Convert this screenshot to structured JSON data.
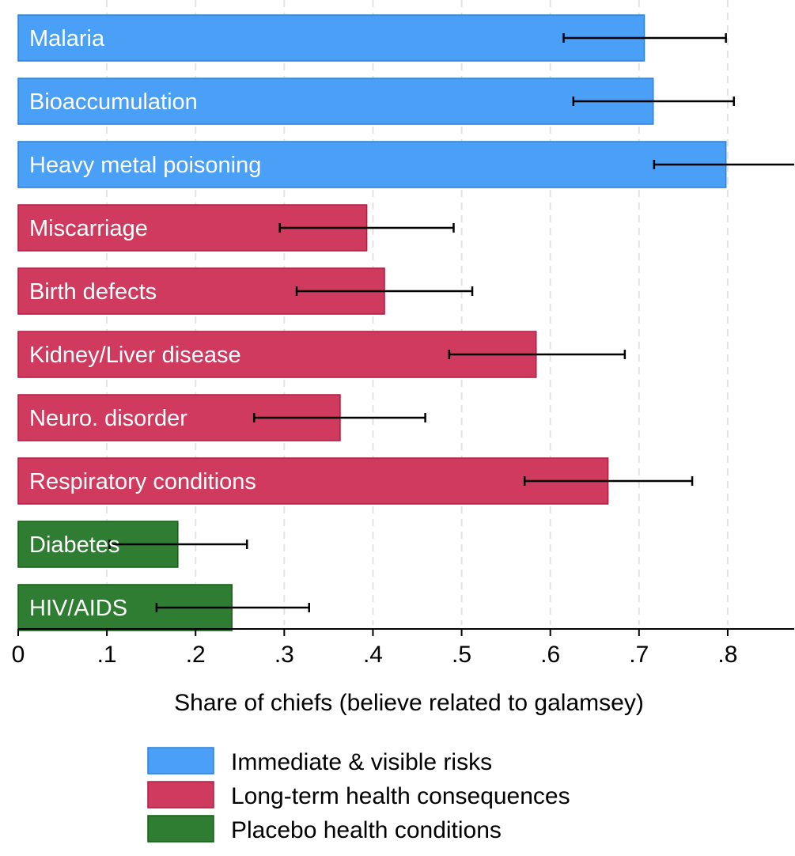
{
  "chart_data": {
    "type": "bar",
    "orientation": "horizontal",
    "xlabel": "Share of chiefs (believe related to galamsey)",
    "ylabel": "",
    "xlim": [
      0,
      0.875
    ],
    "x_ticks": [
      0,
      0.1,
      0.2,
      0.3,
      0.4,
      0.5,
      0.6,
      0.7,
      0.8
    ],
    "x_tick_labels": [
      "0",
      ".1",
      ".2",
      ".3",
      ".4",
      ".5",
      ".6",
      ".7",
      ".8"
    ],
    "grid": "vertical dashed",
    "legend_position": "bottom",
    "groups": [
      {
        "name": "Immediate & visible risks",
        "color": "#4a9ff7"
      },
      {
        "name": "Long-term health consequences",
        "color": "#cf3a5e"
      },
      {
        "name": "Placebo health conditions",
        "color": "#2f7d32"
      }
    ],
    "bars": [
      {
        "label": "Malaria",
        "value": 0.706,
        "ci": [
          0.615,
          0.798
        ],
        "group": 0
      },
      {
        "label": "Bioaccumulation",
        "value": 0.716,
        "ci": [
          0.626,
          0.807
        ],
        "group": 0
      },
      {
        "label": "Heavy metal poisoning",
        "value": 0.798,
        "ci": [
          0.717,
          0.88
        ],
        "group": 0
      },
      {
        "label": "Miscarriage",
        "value": 0.393,
        "ci": [
          0.295,
          0.491
        ],
        "group": 1
      },
      {
        "label": "Birth defects",
        "value": 0.413,
        "ci": [
          0.314,
          0.512
        ],
        "group": 1
      },
      {
        "label": "Kidney/Liver disease",
        "value": 0.584,
        "ci": [
          0.486,
          0.684
        ],
        "group": 1
      },
      {
        "label": "Neuro. disorder",
        "value": 0.363,
        "ci": [
          0.266,
          0.459
        ],
        "group": 1
      },
      {
        "label": "Respiratory conditions",
        "value": 0.665,
        "ci": [
          0.571,
          0.76
        ],
        "group": 1
      },
      {
        "label": "Diabetes",
        "value": 0.18,
        "ci": [
          0.103,
          0.258
        ],
        "group": 2
      },
      {
        "label": "HIV/AIDS",
        "value": 0.241,
        "ci": [
          0.156,
          0.328
        ],
        "group": 2
      }
    ]
  }
}
